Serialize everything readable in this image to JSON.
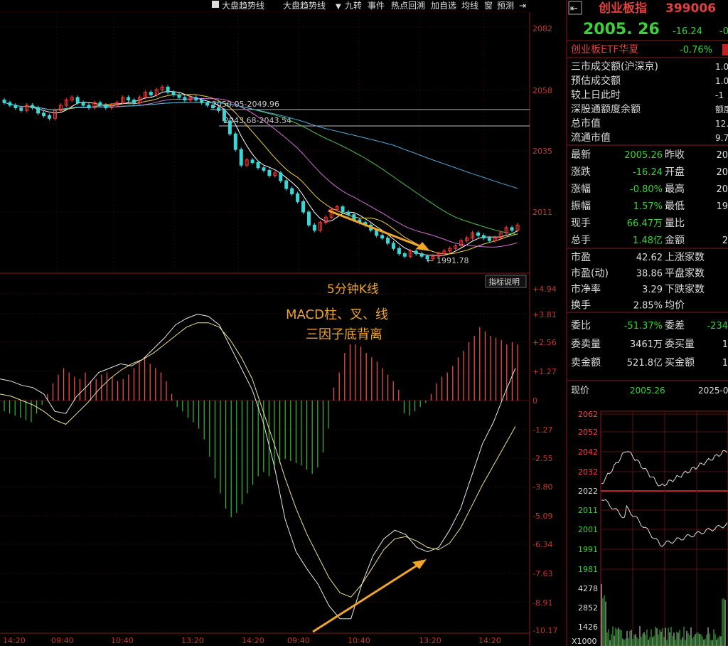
{
  "toolbar": {
    "items": [
      "大盘趋势线",
      "大盘趋势线",
      "九转",
      "事件",
      "热点回溯",
      "加自选",
      "均线",
      "窗",
      "预测"
    ]
  },
  "main_chart": {
    "y_ticks": [
      "2082",
      "2058",
      "2035",
      "2011"
    ],
    "level_lines": [
      "2050.05-2049.96",
      "2043.68-2043.54"
    ],
    "low_label": "1991.78",
    "indicator_button": "指标说明",
    "annotation": {
      "line1": "5分钟K线",
      "line2": "MACD柱、叉、线",
      "line3": "三因子底背离"
    }
  },
  "macd": {
    "y_ticks": [
      "+4.94",
      "+3.81",
      "+2.56",
      "+1.27",
      "0",
      "-1.27",
      "-2.55",
      "-3.80",
      "-5.09",
      "-6.34",
      "-7.63",
      "-8.91",
      "-10.17"
    ]
  },
  "x_axis": [
    "14:20",
    "09:40",
    "10:40",
    "13:20",
    "14:20",
    "09:40",
    "10:40",
    "13:20",
    "14:20"
  ],
  "colors": {
    "up": "#ff3b3b",
    "down": "#3bd6d6",
    "macd_pos": "#ff5050",
    "macd_neg": "#2fbf2f",
    "axis_red": "#c0392b",
    "annotation": "#f0a52b",
    "index_name": "#e04040",
    "green_value": "#3cd03c",
    "red_value": "#ff4040"
  },
  "sidebar": {
    "index_name": "创业板指",
    "index_code": "399006",
    "price": "2005. 26",
    "change": "-16.24",
    "change_pct_cut": "-0",
    "etf_name": "创业板ETF华夏",
    "etf_pct": "-0.76%",
    "info_rows": [
      {
        "label": "三市成交额(沪深京)",
        "value": "1.0"
      },
      {
        "label": "预估成交额",
        "value": "1.0"
      },
      {
        "label": "较上日此时",
        "value": "-1"
      },
      {
        "label": "深股通额度余额",
        "value": "额度"
      },
      {
        "label": "总市值",
        "value": "12.7"
      },
      {
        "label": "流通市值",
        "value": "9.7"
      }
    ],
    "quote_rows": [
      {
        "l1": "最新",
        "v1": "2005.26",
        "l2": "昨收",
        "v2": "20"
      },
      {
        "l1": "涨跌",
        "v1": "-16.24",
        "l2": "开盘",
        "v2": "20"
      },
      {
        "l1": "涨幅",
        "v1": "-0.80%",
        "l2": "最高",
        "v2": "20"
      },
      {
        "l1": "振幅",
        "v1": "1.57%",
        "l2": "最低",
        "v2": "19"
      },
      {
        "l1": "现手",
        "v1": "66.47万",
        "l2": "量比",
        "v2": ""
      },
      {
        "l1": "总手",
        "v1": "1.48亿",
        "l2": "金额",
        "v2": "2"
      }
    ],
    "ratio_rows": [
      {
        "l1": "市盈",
        "v1": "42.62",
        "l2": "上涨家数",
        "v2": ""
      },
      {
        "l1": "市盈(动)",
        "v1": "38.86",
        "l2": "平盘家数",
        "v2": ""
      },
      {
        "l1": "市净率",
        "v1": "3.29",
        "l2": "下跌家数",
        "v2": ""
      },
      {
        "l1": "换手",
        "v1": "2.85%",
        "l2": "均价",
        "v2": ""
      }
    ],
    "order_rows": [
      {
        "l1": "委比",
        "v1": "-51.37%",
        "l2": "委差",
        "v2": "-234"
      },
      {
        "l1": "委卖量",
        "v1": "3461万",
        "l2": "委买量",
        "v2": "1"
      },
      {
        "l1": "卖金额",
        "v1": "521.8亿",
        "l2": "买金额",
        "v2": "1"
      }
    ],
    "mini": {
      "label_now": "现价",
      "now_value": "2005.26",
      "date": "2025-05",
      "y_ticks": [
        "2062",
        "2052",
        "2042",
        "2032",
        "2022",
        "2011",
        "2001",
        "1991",
        "1981"
      ],
      "vol_ticks": [
        "4278",
        "2852",
        "1426"
      ],
      "vol_unit": "X1000"
    }
  }
}
